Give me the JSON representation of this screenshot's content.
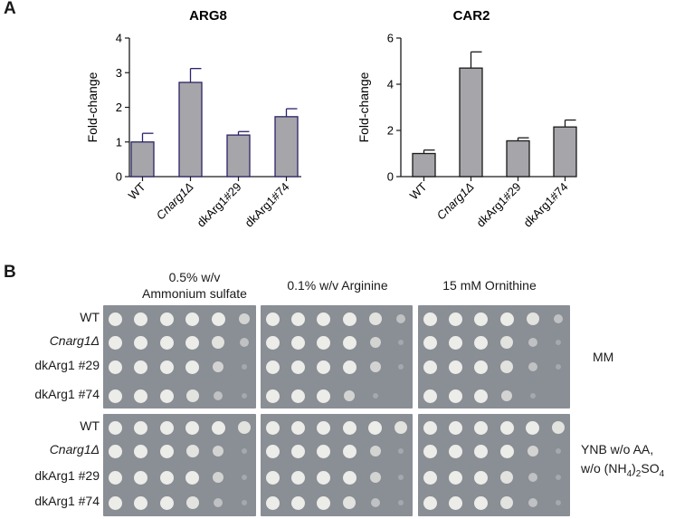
{
  "panels": {
    "a": "A",
    "b": "B"
  },
  "chart_data": [
    {
      "type": "bar",
      "title": "ARG8",
      "ylabel": "Fold-change",
      "categories": [
        "WT",
        "Cnarg1Δ",
        "dkArg1#29",
        "dkArg1#74"
      ],
      "values": [
        1.0,
        2.72,
        1.2,
        1.73
      ],
      "errors": [
        0.25,
        0.4,
        0.1,
        0.23
      ],
      "ylim": [
        0,
        4
      ],
      "yticks": [
        "0",
        "1",
        "2",
        "3",
        "4"
      ],
      "bar_color": "#a6a6aa",
      "edge_color": "#2a2466",
      "grid": false
    },
    {
      "type": "bar",
      "title": "CAR2",
      "ylabel": "Fold-change",
      "categories": [
        "WT",
        "Cnarg1Δ",
        "dkArg1#29",
        "dkArg1#74"
      ],
      "values": [
        1.0,
        4.7,
        1.55,
        2.15
      ],
      "errors": [
        0.15,
        0.7,
        0.13,
        0.3
      ],
      "ylim": [
        0,
        6
      ],
      "yticks": [
        "0",
        "2",
        "4",
        "6"
      ],
      "bar_color": "#a6a6aa",
      "edge_color": "#1a1a1a",
      "grid": false
    }
  ],
  "spot_assay": {
    "conditions": [
      {
        "line1": "0.5% w/v",
        "line2": "Ammonium sulfate"
      },
      {
        "line1": "",
        "line2": "0.1% w/v Arginine"
      },
      {
        "line1": "",
        "line2": "15 mM Ornithine"
      }
    ],
    "strains": [
      "WT",
      "Cnarg1Δ",
      "dkArg1 #29",
      "dkArg1 #74"
    ],
    "media": [
      {
        "line1": "MM",
        "line2": ""
      },
      {
        "line1": "YNB w/o AA,",
        "line2_pre": "w/o (NH",
        "sub1": "4",
        "mid": ")",
        "sub2": "2",
        "post": "SO",
        "sub3": "4"
      }
    ],
    "growth": [
      [
        [
          5,
          5,
          5,
          5,
          5,
          3
        ],
        [
          5,
          5,
          5,
          5,
          4,
          2
        ],
        [
          5,
          5,
          5,
          5,
          3,
          1
        ],
        [
          5,
          5,
          5,
          4,
          2,
          1
        ]
      ],
      [
        [
          5,
          5,
          5,
          5,
          4,
          2
        ],
        [
          5,
          5,
          5,
          5,
          3,
          1
        ],
        [
          5,
          5,
          5,
          5,
          3,
          1
        ],
        [
          5,
          5,
          5,
          3,
          1,
          0
        ]
      ],
      [
        [
          5,
          5,
          5,
          5,
          4,
          2
        ],
        [
          5,
          5,
          5,
          4,
          2,
          1
        ],
        [
          5,
          5,
          5,
          4,
          2,
          1
        ],
        [
          5,
          5,
          5,
          3,
          1,
          0
        ]
      ],
      [
        [
          5,
          5,
          5,
          5,
          5,
          4
        ],
        [
          5,
          5,
          5,
          4,
          3,
          1
        ],
        [
          5,
          5,
          5,
          5,
          3,
          1
        ],
        [
          5,
          5,
          5,
          4,
          2,
          1
        ]
      ],
      [
        [
          5,
          5,
          5,
          5,
          5,
          4
        ],
        [
          5,
          5,
          5,
          5,
          3,
          1
        ],
        [
          5,
          5,
          5,
          5,
          3,
          1
        ],
        [
          5,
          5,
          5,
          4,
          2,
          1
        ]
      ],
      [
        [
          5,
          5,
          5,
          5,
          5,
          4
        ],
        [
          5,
          5,
          5,
          5,
          3,
          1
        ],
        [
          5,
          5,
          5,
          4,
          2,
          1
        ],
        [
          5,
          5,
          5,
          4,
          2,
          1
        ]
      ]
    ]
  }
}
